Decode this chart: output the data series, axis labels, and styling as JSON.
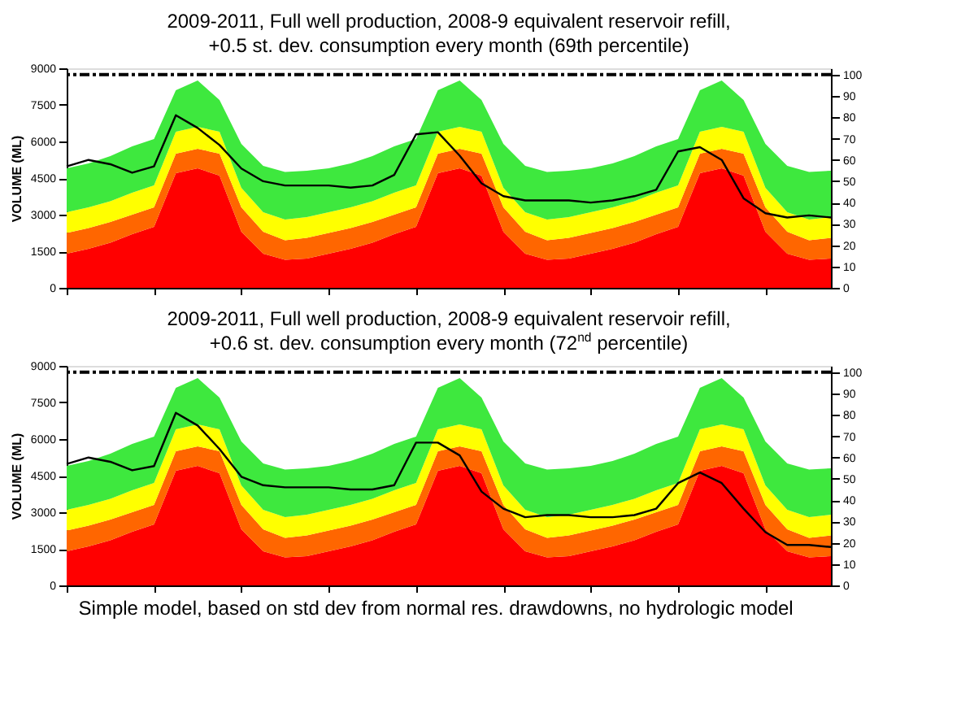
{
  "chart_data": [
    {
      "type": "area",
      "title": "2009-2011, Full well production, 2008-9 equivalent reservoir refill,\n+0.5 st. dev. consumption every month (69th percentile)",
      "ylabel": "VOLUME (ML)",
      "categories": [
        null,
        null,
        null,
        null,
        null,
        null,
        null,
        null,
        null,
        null,
        null,
        null,
        null,
        null,
        null,
        null,
        null,
        null,
        null,
        null,
        null,
        null,
        null,
        null,
        null,
        null,
        null,
        null,
        null,
        null,
        null,
        null,
        null,
        null,
        null,
        null
      ],
      "stacked": true,
      "tick_labels": "y",
      "ylim": [
        0,
        9000
      ],
      "yticks": [
        0,
        1500,
        3000,
        4500,
        6000,
        7500,
        9000
      ],
      "y2lim": [
        0,
        103
      ],
      "y2ticks": [
        0,
        10,
        20,
        30,
        40,
        50,
        60,
        70,
        80,
        90,
        100
      ],
      "series": [
        {
          "color": "#ff0000",
          "values": [
            1400,
            1600,
            1850,
            2200,
            2500,
            4700,
            4900,
            4600,
            2300,
            1400,
            1150,
            1200,
            1400,
            1600,
            1850,
            2200,
            2500,
            4700,
            4900,
            4600,
            2300,
            1400,
            1150,
            1200,
            1400,
            1600,
            1850,
            2200,
            2500,
            4700,
            4900,
            4600,
            2300,
            1400,
            1150,
            1200
          ]
        },
        {
          "color": "#ff6600",
          "values": [
            850,
            850,
            850,
            800,
            800,
            800,
            800,
            900,
            1000,
            900,
            800,
            850,
            850,
            850,
            850,
            800,
            800,
            800,
            800,
            900,
            1000,
            900,
            800,
            850,
            850,
            850,
            850,
            800,
            800,
            800,
            800,
            900,
            1000,
            900,
            800,
            850
          ]
        },
        {
          "color": "#ffff00",
          "values": [
            850,
            850,
            850,
            900,
            900,
            900,
            900,
            900,
            800,
            800,
            850,
            850,
            850,
            850,
            850,
            900,
            900,
            900,
            900,
            900,
            800,
            800,
            850,
            850,
            850,
            850,
            850,
            900,
            900,
            900,
            900,
            900,
            800,
            800,
            850,
            850
          ]
        },
        {
          "color": "#3ee83e",
          "values": [
            1800,
            1800,
            1850,
            1900,
            1900,
            1700,
            1900,
            1300,
            1800,
            1900,
            1950,
            1900,
            1800,
            1800,
            1850,
            1900,
            1900,
            1700,
            1900,
            1300,
            1800,
            1900,
            1950,
            1900,
            1800,
            1800,
            1850,
            1900,
            1900,
            1700,
            1900,
            1300,
            1800,
            1900,
            1950,
            1900
          ]
        },
        {
          "type": "line",
          "axis": "y2",
          "color": "#000000",
          "values": [
            57,
            60,
            58,
            54,
            57,
            81,
            75,
            67,
            56,
            50,
            48,
            48,
            48,
            47,
            48,
            53,
            72,
            73,
            62,
            49,
            43,
            41,
            41,
            41,
            40,
            41,
            43,
            46,
            64,
            66,
            60,
            42,
            35,
            33,
            34,
            33
          ]
        }
      ],
      "ref_lines": [
        {
          "axis": "y2",
          "value": 100,
          "color": "#000000",
          "line_style": "dashed"
        }
      ]
    },
    {
      "type": "area",
      "title": "2009-2011, Full well production, 2008-9 equivalent reservoir refill,\n+0.6 st. dev. consumption every month (72$^{nd}$ percentile)",
      "ylabel": "VOLUME (ML)",
      "categories": [
        null,
        null,
        null,
        null,
        null,
        null,
        null,
        null,
        null,
        null,
        null,
        null,
        null,
        null,
        null,
        null,
        null,
        null,
        null,
        null,
        null,
        null,
        null,
        null,
        null,
        null,
        null,
        null,
        null,
        null,
        null,
        null,
        null,
        null,
        null,
        null
      ],
      "stacked": true,
      "tick_labels": "y",
      "ylim": [
        0,
        9000
      ],
      "yticks": [
        0,
        1500,
        3000,
        4500,
        6000,
        7500,
        9000
      ],
      "y2lim": [
        0,
        103
      ],
      "y2ticks": [
        0,
        10,
        20,
        30,
        40,
        50,
        60,
        70,
        80,
        90,
        100
      ],
      "series": [
        {
          "color": "#ff0000",
          "values": [
            1400,
            1600,
            1850,
            2200,
            2500,
            4700,
            4900,
            4600,
            2300,
            1400,
            1150,
            1200,
            1400,
            1600,
            1850,
            2200,
            2500,
            4700,
            4900,
            4600,
            2300,
            1400,
            1150,
            1200,
            1400,
            1600,
            1850,
            2200,
            2500,
            4700,
            4900,
            4600,
            2300,
            1400,
            1150,
            1200
          ]
        },
        {
          "color": "#ff6600",
          "values": [
            850,
            850,
            850,
            800,
            800,
            800,
            800,
            900,
            1000,
            900,
            800,
            850,
            850,
            850,
            850,
            800,
            800,
            800,
            800,
            900,
            1000,
            900,
            800,
            850,
            850,
            850,
            850,
            800,
            800,
            800,
            800,
            900,
            1000,
            900,
            800,
            850
          ]
        },
        {
          "color": "#ffff00",
          "values": [
            850,
            850,
            850,
            900,
            900,
            900,
            900,
            900,
            800,
            800,
            850,
            850,
            850,
            850,
            850,
            900,
            900,
            900,
            900,
            900,
            800,
            800,
            850,
            850,
            850,
            850,
            850,
            900,
            900,
            900,
            900,
            900,
            800,
            800,
            850,
            850
          ]
        },
        {
          "color": "#3ee83e",
          "values": [
            1800,
            1800,
            1850,
            1900,
            1900,
            1700,
            1900,
            1300,
            1800,
            1900,
            1950,
            1900,
            1800,
            1800,
            1850,
            1900,
            1900,
            1700,
            1900,
            1300,
            1800,
            1900,
            1950,
            1900,
            1800,
            1800,
            1850,
            1900,
            1900,
            1700,
            1900,
            1300,
            1800,
            1900,
            1950,
            1900
          ]
        },
        {
          "type": "line",
          "axis": "y2",
          "color": "#000000",
          "values": [
            57,
            60,
            58,
            54,
            56,
            81,
            75,
            64,
            51,
            47,
            46,
            46,
            46,
            45,
            45,
            47,
            67,
            67,
            61,
            44,
            36,
            32,
            33,
            33,
            32,
            32,
            33,
            36,
            48,
            53,
            48,
            36,
            25,
            19,
            19,
            18
          ]
        }
      ],
      "ref_lines": [
        {
          "axis": "y2",
          "value": 100,
          "color": "#000000",
          "line_style": "dashed"
        }
      ],
      "annotations": [
        "Simple model, based on std dev from normal res. drawdowns, no hydrologic model"
      ]
    }
  ]
}
